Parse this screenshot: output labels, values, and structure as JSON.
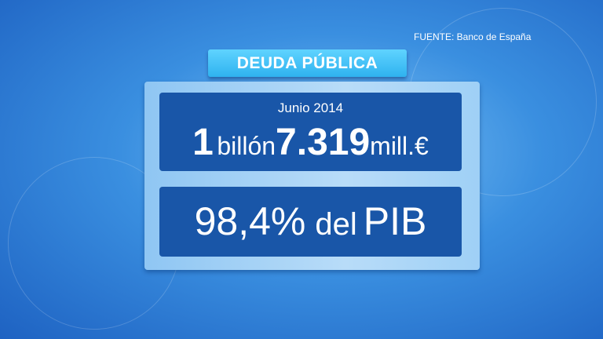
{
  "source": "FUENTE: Banco de España",
  "header": "DEUDA PÚBLICA",
  "debt": {
    "date": "Junio 2014",
    "billion_num": "1",
    "billion_word": "billón",
    "millions_num": "7.319",
    "millions_unit": "mill.€"
  },
  "gdp": {
    "percent": "98,4%",
    "del": "del",
    "pib": "PIB"
  },
  "colors": {
    "background": "#3a8fe0",
    "header": "#3cbdf3",
    "box": "#1956a8",
    "panel": "#a8d3f6"
  }
}
